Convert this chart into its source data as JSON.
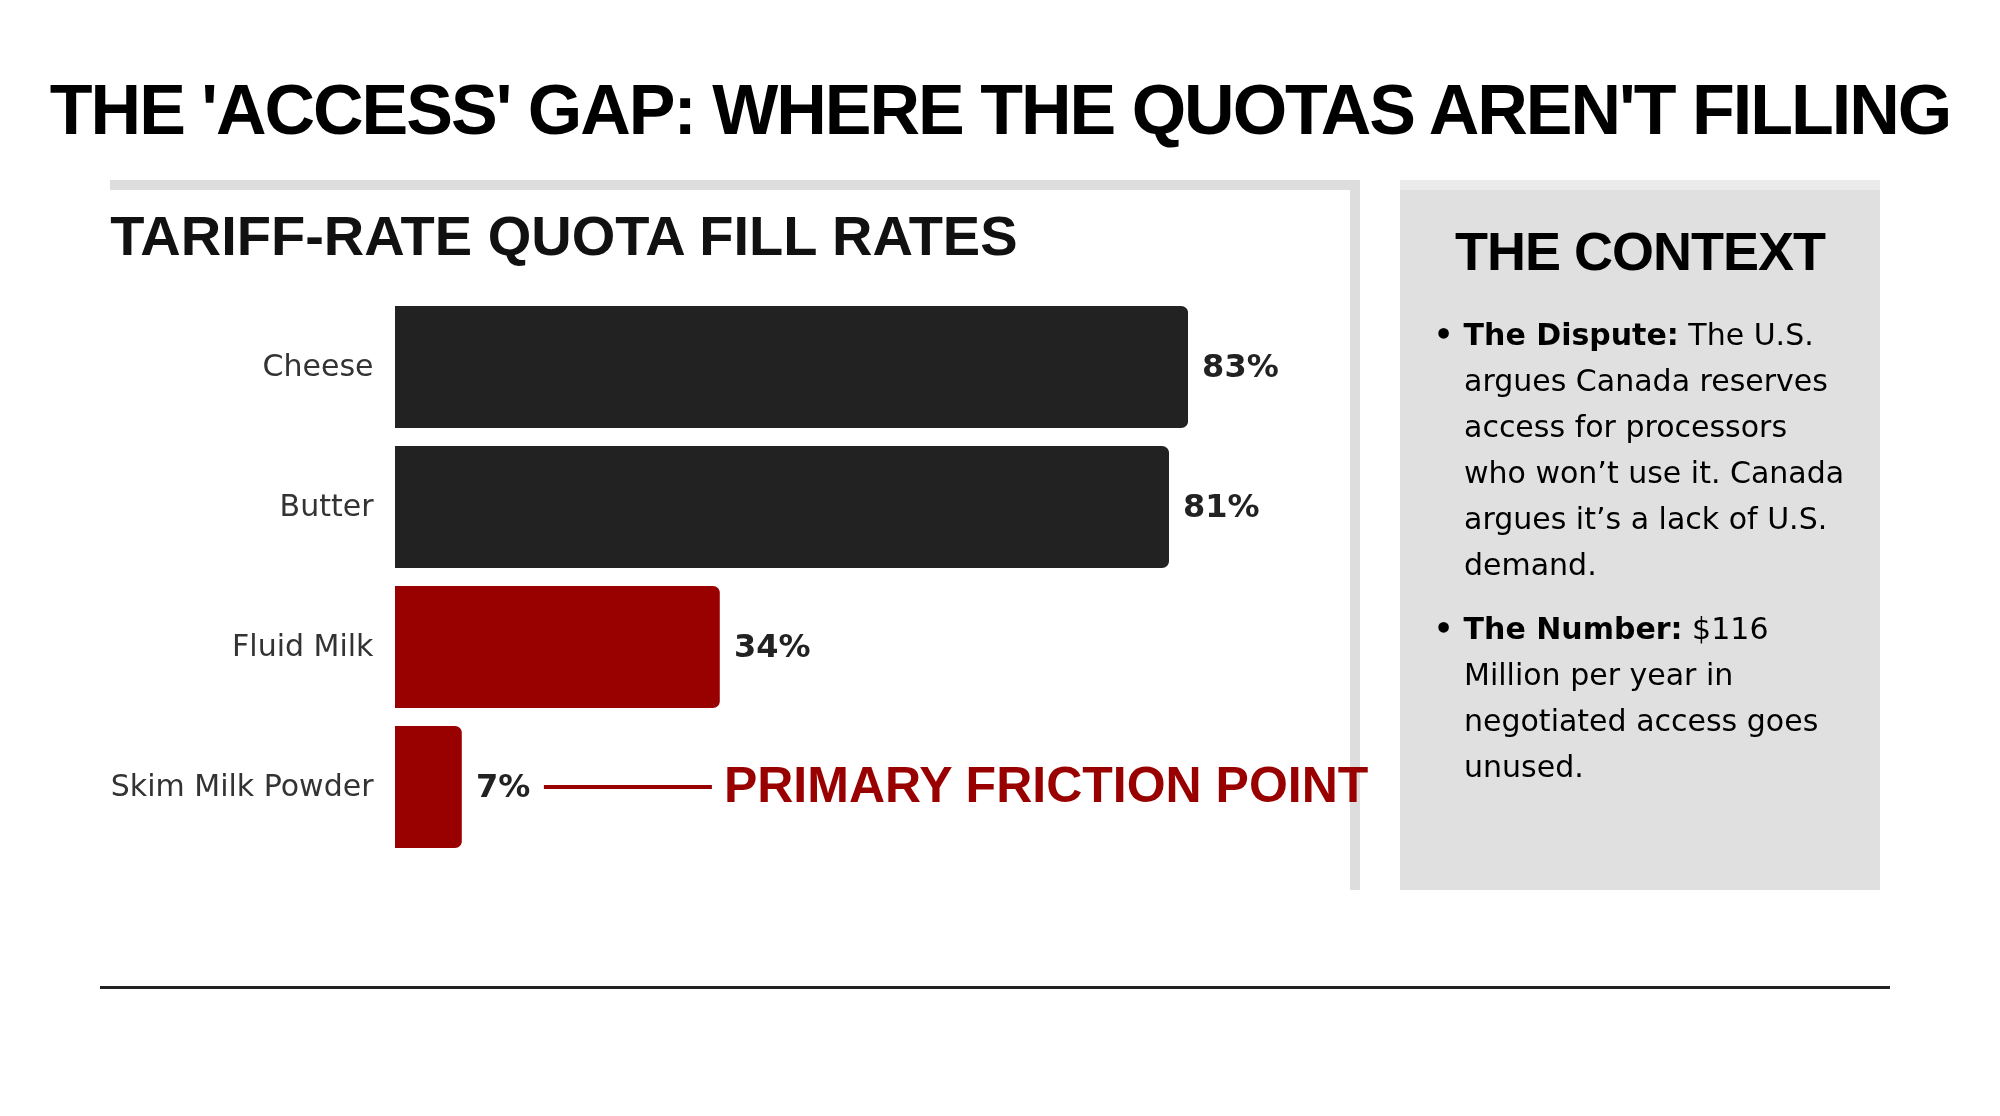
{
  "chart_data": [
    {
      "type": "bar",
      "title": "THE 'ACCESS' GAP: WHERE THE QUOTAS AREN'T FILLING",
      "subtitle": "TARIFF-RATE QUOTA FILL RATES",
      "orientation": "horizontal",
      "categories": [
        "Cheese",
        "Butter",
        "Fluid Milk",
        "Skim Milk Powder"
      ],
      "values": [
        83,
        81,
        34,
        7
      ],
      "colors": [
        "#222222",
        "#222222",
        "#990000",
        "#990000"
      ],
      "value_labels": [
        "83%",
        "81%",
        "34%",
        "7%"
      ],
      "annotations": [
        "PRIMARY FRICTION POINT"
      ]
    },
    {
      "type": "other",
      "title": "THE CONTEXT",
      "annotations": [
        "• The Dispute: The U.S. argues Canada reserves access for processors who won’t use it. Canada argues it’s a lack of U.S. demand.",
        "• The Number: $116 Million per year in negotiated access goes unused."
      ]
    }
  ]
}
